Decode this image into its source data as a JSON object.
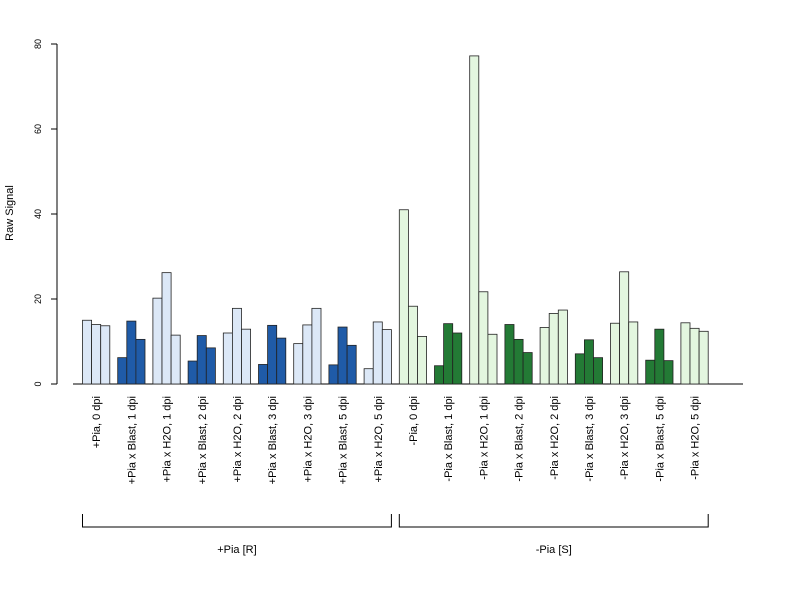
{
  "chart_data": {
    "type": "bar",
    "ylabel": "Raw Signal",
    "ylim": [
      0,
      80
    ],
    "yticks": [
      0,
      20,
      40,
      60,
      80
    ],
    "grid": false,
    "colors": {
      "light_blue": "#dce8f7",
      "dark_blue": "#1f5ba8",
      "light_green": "#e3f6df",
      "dark_green": "#237a35"
    },
    "categories": [
      {
        "label": "+Pia, 0 dpi",
        "values": [
          15.0,
          14.0,
          13.7
        ],
        "color": "light_blue"
      },
      {
        "label": "+Pia x Blast, 1 dpi",
        "values": [
          6.2,
          14.8,
          10.5
        ],
        "color": "dark_blue"
      },
      {
        "label": "+Pia x H2O, 1 dpi",
        "values": [
          20.2,
          26.2,
          11.5
        ],
        "color": "light_blue"
      },
      {
        "label": "+Pia x Blast, 2 dpi",
        "values": [
          5.4,
          11.4,
          8.5
        ],
        "color": "dark_blue"
      },
      {
        "label": "+Pia x H2O, 2 dpi",
        "values": [
          12.0,
          17.8,
          12.9
        ],
        "color": "light_blue"
      },
      {
        "label": "+Pia x Blast, 3 dpi",
        "values": [
          4.6,
          13.8,
          10.8
        ],
        "color": "dark_blue"
      },
      {
        "label": "+Pia x H2O, 3 dpi",
        "values": [
          9.5,
          13.9,
          17.8
        ],
        "color": "light_blue"
      },
      {
        "label": "+Pia x Blast, 5 dpi",
        "values": [
          4.5,
          13.4,
          9.1
        ],
        "color": "dark_blue"
      },
      {
        "label": "+Pia x H2O, 5 dpi",
        "values": [
          3.6,
          14.6,
          12.8
        ],
        "color": "light_blue"
      },
      {
        "label": "-Pia, 0 dpi",
        "values": [
          41.0,
          18.3,
          11.2
        ],
        "color": "light_green"
      },
      {
        "label": "-Pia x Blast, 1 dpi",
        "values": [
          4.3,
          14.2,
          12.0
        ],
        "color": "dark_green"
      },
      {
        "label": "-Pia x H2O, 1 dpi",
        "values": [
          77.2,
          21.7,
          11.7
        ],
        "color": "light_green"
      },
      {
        "label": "-Pia x Blast, 2 dpi",
        "values": [
          14.0,
          10.5,
          7.4
        ],
        "color": "dark_green"
      },
      {
        "label": "-Pia x H2O, 2 dpi",
        "values": [
          13.3,
          16.6,
          17.4
        ],
        "color": "light_green"
      },
      {
        "label": "-Pia x Blast, 3 dpi",
        "values": [
          7.1,
          10.4,
          6.2
        ],
        "color": "dark_green"
      },
      {
        "label": "-Pia x H2O, 3 dpi",
        "values": [
          14.3,
          26.4,
          14.6
        ],
        "color": "light_green"
      },
      {
        "label": "-Pia x Blast, 5 dpi",
        "values": [
          5.6,
          12.9,
          5.5
        ],
        "color": "dark_green"
      },
      {
        "label": "-Pia x H2O, 5 dpi",
        "values": [
          14.4,
          13.1,
          12.4
        ],
        "color": "light_green"
      }
    ],
    "groups": [
      {
        "label": "+Pia [R]",
        "from": 0,
        "to": 8
      },
      {
        "label": "-Pia [S]",
        "from": 9,
        "to": 17
      }
    ]
  }
}
